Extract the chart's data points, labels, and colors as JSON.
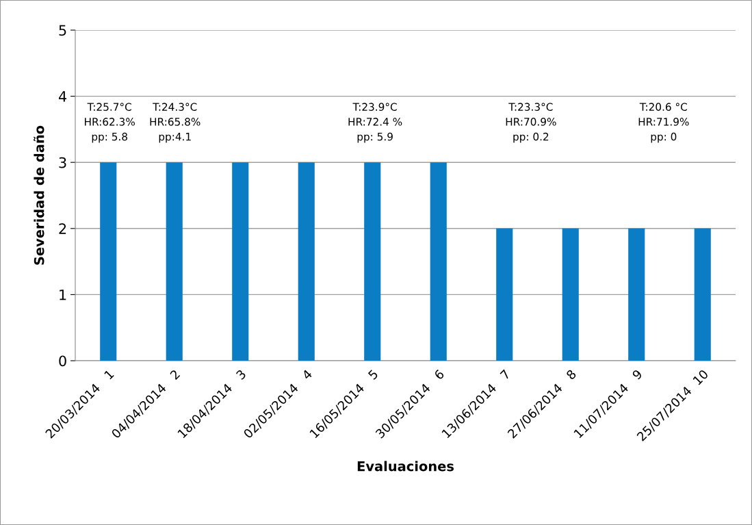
{
  "chart_data": {
    "type": "bar",
    "xlabel": "Evaluaciones",
    "ylabel": "Severidad de daño",
    "categories": [
      "20/03/2014   1",
      "04/04/2014   2",
      "18/04/2014   3",
      "02/05/2014   4",
      "16/05/2014   5",
      "30/05/2014   6",
      "13/06/2014   7",
      "27/06/2014   8",
      "11/07/2014   9",
      "25/07/2014  10"
    ],
    "values": [
      3,
      3,
      3,
      3,
      3,
      3,
      2,
      2,
      2,
      2
    ],
    "color": "#0a7dc4",
    "ylim": [
      0,
      5
    ],
    "yticks": [
      0,
      1,
      2,
      3,
      4,
      5
    ],
    "grid": "y",
    "annotations": [
      "T:25.7°C\nHR:62.3%\npp: 5.8",
      "T:24.3°C\nHR:65.8%\npp:4.1",
      "T:23.9°C\nHR:72.4 %\npp: 5.9",
      "T:23.3°C\nHR:70.9%\npp: 0.2",
      "T:20.6 °C\nHR:71.9%\npp: 0"
    ]
  }
}
